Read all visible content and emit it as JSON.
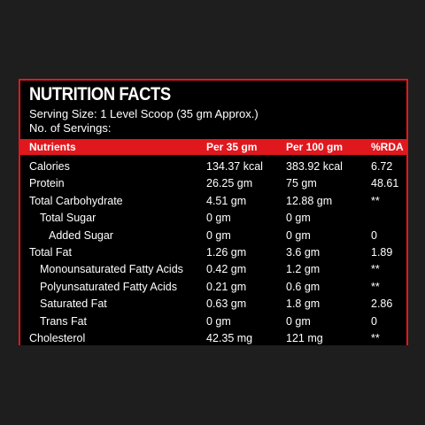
{
  "title": "NUTRITION FACTS",
  "serving_size": "Serving Size: 1 Level Scoop (35 gm Approx.)",
  "servings": "No. of Servings:",
  "colors": {
    "accent": "#e0181e",
    "panel": "#000000",
    "background": "#1e1e1e"
  },
  "header": {
    "nutrients": "Nutrients",
    "per35": "Per 35 gm",
    "per100": "Per 100 gm",
    "rda": "%RDA"
  },
  "rows": [
    {
      "name": "Calories",
      "indent": 0,
      "per35": "134.37 kcal",
      "per100": "383.92 kcal",
      "rda": "6.72"
    },
    {
      "name": "Protein",
      "indent": 0,
      "per35": "26.25 gm",
      "per100": "75 gm",
      "rda": "48.61"
    },
    {
      "name": "Total Carbohydrate",
      "indent": 0,
      "per35": "4.51 gm",
      "per100": "12.88 gm",
      "rda": "**"
    },
    {
      "name": "Total Sugar",
      "indent": 1,
      "per35": "0 gm",
      "per100": "0 gm",
      "rda": ""
    },
    {
      "name": "Added Sugar",
      "indent": 2,
      "per35": "0 gm",
      "per100": "0 gm",
      "rda": "0"
    },
    {
      "name": "Total Fat",
      "indent": 0,
      "per35": "1.26 gm",
      "per100": "3.6 gm",
      "rda": "1.89"
    },
    {
      "name": "Monounsaturated Fatty Acids",
      "indent": 1,
      "per35": "0.42 gm",
      "per100": "1.2 gm",
      "rda": "**"
    },
    {
      "name": "Polyunsaturated Fatty Acids",
      "indent": 1,
      "per35": "0.21 gm",
      "per100": "0.6 gm",
      "rda": "**"
    },
    {
      "name": "Saturated Fat",
      "indent": 1,
      "per35": "0.63 gm",
      "per100": "1.8 gm",
      "rda": "2.86"
    },
    {
      "name": "Trans Fat",
      "indent": 1,
      "per35": "0 gm",
      "per100": "0 gm",
      "rda": "0"
    },
    {
      "name": "Cholesterol",
      "indent": 0,
      "per35": "42.35 mg",
      "per100": "121 mg",
      "rda": "**"
    }
  ]
}
